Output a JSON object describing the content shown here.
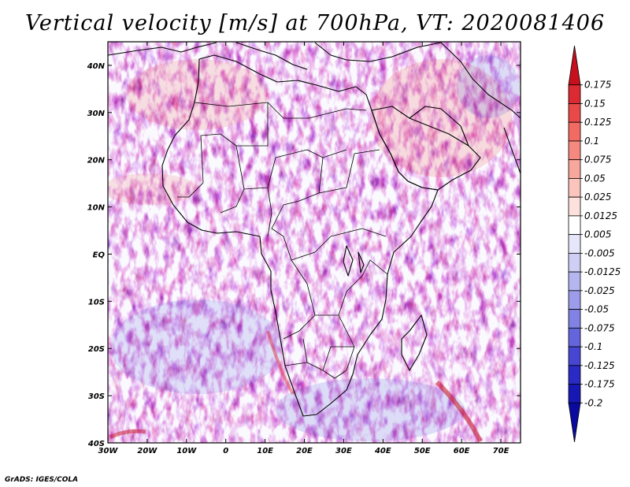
{
  "title": "Vertical velocity [m/s] at 700hPa, VT: 2020081406",
  "credit": "GrADS: IGES/COLA",
  "map": {
    "region": "Africa",
    "lon_range": [
      -30,
      75
    ],
    "lat_range": [
      -40,
      45
    ],
    "lat_ticks": [
      {
        "value": 40,
        "label": "40N"
      },
      {
        "value": 30,
        "label": "30N"
      },
      {
        "value": 20,
        "label": "20N"
      },
      {
        "value": 10,
        "label": "10N"
      },
      {
        "value": 0,
        "label": "EQ"
      },
      {
        "value": -10,
        "label": "10S"
      },
      {
        "value": -20,
        "label": "20S"
      },
      {
        "value": -30,
        "label": "30S"
      },
      {
        "value": -40,
        "label": "40S"
      }
    ],
    "lon_ticks": [
      {
        "value": -30,
        "label": "30W"
      },
      {
        "value": -20,
        "label": "20W"
      },
      {
        "value": -10,
        "label": "10W"
      },
      {
        "value": 0,
        "label": "0"
      },
      {
        "value": 10,
        "label": "10E"
      },
      {
        "value": 20,
        "label": "20E"
      },
      {
        "value": 30,
        "label": "30E"
      },
      {
        "value": 40,
        "label": "40E"
      },
      {
        "value": 50,
        "label": "50E"
      },
      {
        "value": 60,
        "label": "60E"
      },
      {
        "value": 70,
        "label": "70E"
      }
    ]
  },
  "colorbar": {
    "labels": [
      "0.175",
      "0.15",
      "0.125",
      "0.1",
      "0.075",
      "0.05",
      "0.025",
      "0.0125",
      "0.005",
      "-0.005",
      "-0.0125",
      "-0.025",
      "-0.05",
      "-0.075",
      "-0.1",
      "-0.125",
      "-0.175",
      "-0.2"
    ],
    "colors": [
      "#c80f1e",
      "#dc2a32",
      "#e94a48",
      "#f16b63",
      "#f5897f",
      "#f8a79d",
      "#fbc5bd",
      "#fde1dc",
      "#ffffff",
      "#e7e7fb",
      "#cfcff6",
      "#b5b5f0",
      "#9c9ceb",
      "#8282e4",
      "#6464dc",
      "#4646d2",
      "#2a2ac4",
      "#1717b4",
      "#0a0aa0"
    ]
  }
}
